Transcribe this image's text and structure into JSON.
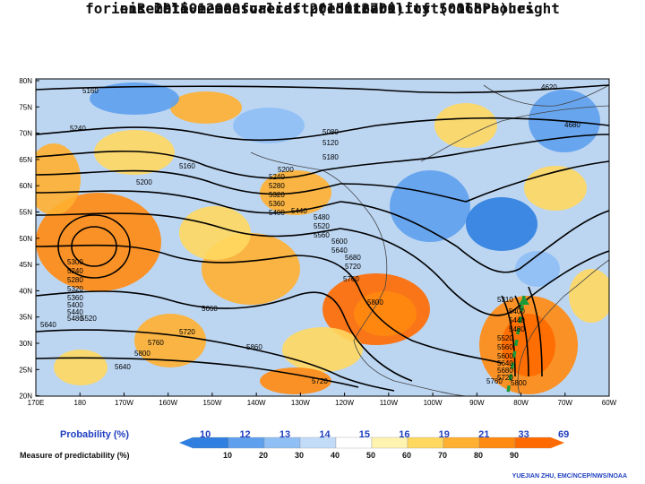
{
  "title_line1": "Relative measure of predictability (colors)",
  "title_line2": "for ensemble mean forecast (contours) of 500 hPa height",
  "title_line3": "ini: 2015012000 valid: 2015012700 fcst: 168 hours",
  "lat_labels": [
    "80N",
    "75N",
    "70N",
    "65N",
    "60N",
    "55N",
    "50N",
    "45N",
    "40N",
    "35N",
    "30N",
    "25N",
    "20N"
  ],
  "lon_labels": [
    "170E",
    "180",
    "170W",
    "160W",
    "150W",
    "140W",
    "130W",
    "120W",
    "110W",
    "100W",
    "90W",
    "80W",
    "70W",
    "60W"
  ],
  "contour_labels": [
    "5160",
    "4620",
    "4680",
    "5240",
    "5080",
    "5120",
    "5180",
    "5160",
    "5200",
    "5200",
    "5240",
    "5280",
    "5320",
    "5360",
    "5400",
    "5440",
    "5480",
    "5520",
    "5560",
    "5600",
    "5640",
    "5680",
    "5720",
    "5760",
    "5800",
    "5300",
    "5240",
    "5280",
    "5320",
    "5360",
    "5400",
    "5440",
    "5480",
    "5520",
    "5640",
    "5660",
    "5720",
    "5760",
    "5800",
    "5640",
    "5860",
    "5720",
    "5310",
    "5400",
    "5440",
    "5480",
    "5520",
    "5560",
    "5600",
    "5640",
    "5680",
    "5720",
    "5760",
    "5800"
  ],
  "colorbar": {
    "probability_label": "Probability (%)",
    "probability_values": [
      "10",
      "12",
      "13",
      "14",
      "15",
      "16",
      "19",
      "21",
      "33",
      "69"
    ],
    "measure_label": "Measure of predictability (%)",
    "measure_values": [
      "10",
      "20",
      "30",
      "40",
      "50",
      "60",
      "70",
      "80",
      "90"
    ],
    "colors": [
      "#2f7fe0",
      "#5ea0ee",
      "#8fbff5",
      "#c2dcf8",
      "#ffffff",
      "#fff3b0",
      "#ffd860",
      "#ffb030",
      "#ff8a10",
      "#ff6a00"
    ]
  },
  "credit": "YUEJIAN ZHU, EMC/NCEP/NWS/NOAA"
}
